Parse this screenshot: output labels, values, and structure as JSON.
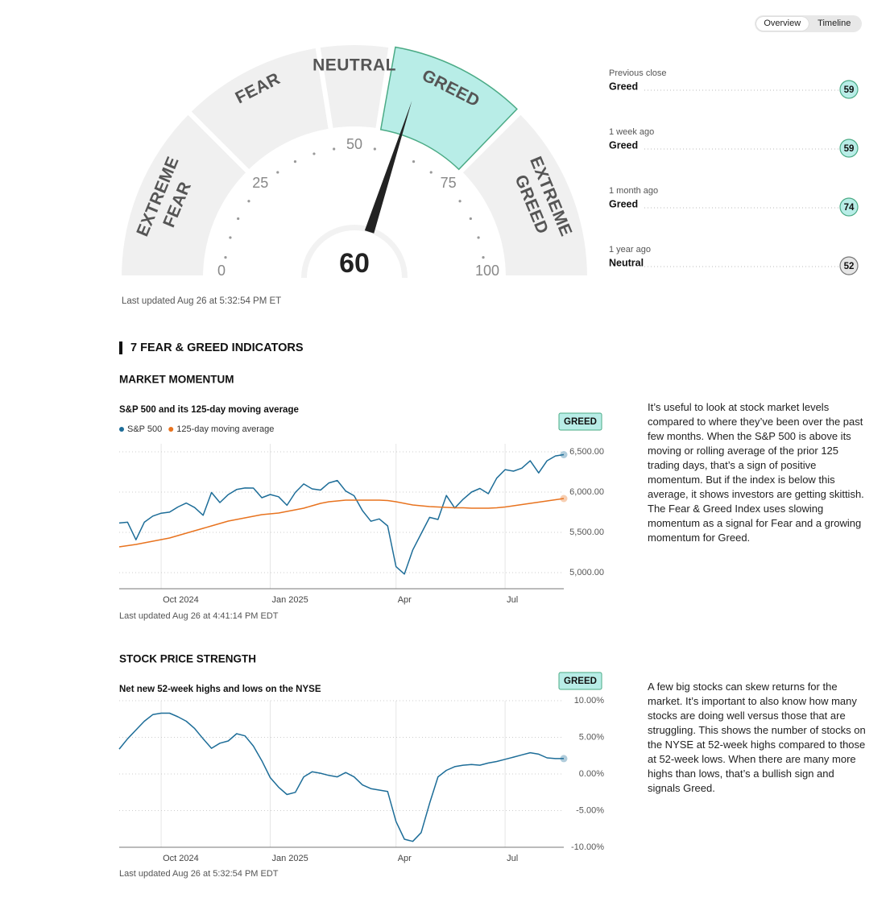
{
  "tabs": {
    "items": [
      "Overview",
      "Timeline"
    ],
    "selected": 0
  },
  "gauge": {
    "value": 60,
    "ticks": [
      0,
      25,
      50,
      75,
      100
    ],
    "segments": [
      {
        "label": [
          "EXTREME",
          "FEAR"
        ],
        "range": [
          0,
          25
        ]
      },
      {
        "label": [
          "FEAR"
        ],
        "range": [
          25,
          45
        ]
      },
      {
        "label": [
          "NEUTRAL"
        ],
        "range": [
          45,
          55
        ]
      },
      {
        "label": [
          "GREED"
        ],
        "range": [
          55,
          75
        ]
      },
      {
        "label": [
          "EXTREME",
          "GREED"
        ],
        "range": [
          75,
          100
        ]
      }
    ],
    "highlight_color": "#b8ede7",
    "highlight_stroke": "#4bab86",
    "updated": "Last updated Aug 26 at 5:32:54 PM ET"
  },
  "history": [
    {
      "label": "Previous close",
      "rating": "Greed",
      "value": 59,
      "color": "#b8ede7",
      "border": "#4bab86"
    },
    {
      "label": "1 week ago",
      "rating": "Greed",
      "value": 59,
      "color": "#b8ede7",
      "border": "#4bab86"
    },
    {
      "label": "1 month ago",
      "rating": "Greed",
      "value": 74,
      "color": "#b8ede7",
      "border": "#4bab86"
    },
    {
      "label": "1 year ago",
      "rating": "Neutral",
      "value": 52,
      "color": "#e6e6e6",
      "border": "#777777"
    }
  ],
  "section_title": "7 FEAR & GREED INDICATORS",
  "indicators": [
    {
      "heading": "MARKET MOMENTUM",
      "rating": "GREED",
      "rating_color": "#b8ede7",
      "description": "It’s useful to look at stock market levels compared to where they’ve been over the past few months. When the S&P 500 is above its moving or rolling average of the prior 125 trading days, that’s a sign of positive momentum. But if the index is below this average, it shows investors are getting skittish. The Fear & Greed Index uses slowing momentum as a signal for Fear and a growing momentum for Greed.",
      "updated": "Last updated Aug 26 at 4:41:14 PM EDT"
    },
    {
      "heading": "STOCK PRICE STRENGTH",
      "rating": "GREED",
      "rating_color": "#b8ede7",
      "description": "A few big stocks can skew returns for the market. It’s important to also know how many stocks are doing well versus those that are struggling. This shows the number of stocks on the NYSE at 52-week highs compared to those at 52-week lows. When there are many more highs than lows, that’s a bullish sign and signals Greed.",
      "updated": "Last updated Aug 26 at 5:32:54 PM EDT"
    }
  ],
  "chart_data": [
    {
      "type": "line",
      "title": "S&P 500 and its 125-day moving average",
      "categories": [
        null,
        null,
        null,
        null,
        null,
        "Oct 2024",
        null,
        null,
        null,
        null,
        null,
        null,
        null,
        null,
        null,
        null,
        null,
        null,
        "Jan 2025",
        null,
        null,
        null,
        null,
        null,
        null,
        null,
        null,
        null,
        null,
        null,
        null,
        null,
        null,
        "Apr",
        null,
        null,
        null,
        null,
        null,
        null,
        null,
        null,
        null,
        null,
        null,
        null,
        "Jul",
        null,
        null,
        null,
        null,
        null,
        null,
        null
      ],
      "series": [
        {
          "name": "S&P 500",
          "color": "#1d6d98",
          "values": [
            5616,
            5626,
            5408,
            5626,
            5702,
            5738,
            5751,
            5815,
            5864,
            5808,
            5712,
            5995,
            5870,
            5969,
            6032,
            6051,
            6050,
            5930,
            5970,
            5942,
            5836,
            5996,
            6101,
            6040,
            6025,
            6114,
            6144,
            6013,
            5955,
            5770,
            5638,
            5667,
            5580,
            5074,
            4982,
            5282,
            5484,
            5686,
            5660,
            5958,
            5802,
            5911,
            6000,
            6045,
            5980,
            6173,
            6279,
            6260,
            6297,
            6389,
            6238,
            6389,
            6449,
            6465
          ]
        },
        {
          "name": "125-day moving average",
          "color": "#e8731f",
          "values": [
            5320,
            5335,
            5350,
            5370,
            5390,
            5410,
            5430,
            5460,
            5490,
            5520,
            5550,
            5580,
            5610,
            5640,
            5660,
            5680,
            5700,
            5720,
            5730,
            5740,
            5760,
            5780,
            5800,
            5830,
            5860,
            5880,
            5890,
            5900,
            5900,
            5900,
            5900,
            5900,
            5895,
            5880,
            5860,
            5840,
            5830,
            5820,
            5815,
            5810,
            5805,
            5805,
            5800,
            5800,
            5800,
            5805,
            5815,
            5830,
            5845,
            5860,
            5875,
            5890,
            5905,
            5920
          ]
        }
      ],
      "ylim": [
        4800,
        6600
      ],
      "yticks": [
        {
          "value": 5000,
          "label": "5,000.00"
        },
        {
          "value": 5500,
          "label": "5,500.00"
        },
        {
          "value": 6000,
          "label": "6,000.00"
        },
        {
          "value": 6500,
          "label": "6,500.00"
        }
      ],
      "grid": true,
      "legend": "top-left"
    },
    {
      "type": "line",
      "title": "Net new 52-week highs and lows on the NYSE",
      "categories": [
        null,
        null,
        null,
        null,
        null,
        "Oct 2024",
        null,
        null,
        null,
        null,
        null,
        null,
        null,
        null,
        null,
        null,
        null,
        null,
        "Jan 2025",
        null,
        null,
        null,
        null,
        null,
        null,
        null,
        null,
        null,
        null,
        null,
        null,
        null,
        null,
        "Apr",
        null,
        null,
        null,
        null,
        null,
        null,
        null,
        null,
        null,
        null,
        null,
        null,
        "Jul",
        null,
        null,
        null,
        null,
        null,
        null,
        null
      ],
      "series": [
        {
          "color": "#1d6d98",
          "values": [
            3.4,
            4.8,
            6.0,
            7.2,
            8.1,
            8.3,
            8.3,
            7.8,
            7.2,
            6.2,
            4.8,
            3.5,
            4.2,
            4.5,
            5.5,
            5.2,
            3.8,
            1.8,
            -0.5,
            -1.8,
            -2.8,
            -2.5,
            -0.4,
            0.3,
            0.1,
            -0.2,
            -0.4,
            0.2,
            -0.4,
            -1.5,
            -2.0,
            -2.2,
            -2.4,
            -6.5,
            -8.9,
            -9.2,
            -8.0,
            -4.0,
            -0.4,
            0.5,
            1.0,
            1.2,
            1.3,
            1.2,
            1.5,
            1.7,
            2.0,
            2.3,
            2.6,
            2.9,
            2.7,
            2.2,
            2.1,
            2.1
          ]
        }
      ],
      "ylim": [
        -10,
        10
      ],
      "yticks": [
        {
          "value": -10,
          "label": "-10.00%"
        },
        {
          "value": -5,
          "label": "-5.00%"
        },
        {
          "value": 0,
          "label": "0.00%"
        },
        {
          "value": 5,
          "label": "5.00%"
        },
        {
          "value": 10,
          "label": "10.00%"
        }
      ],
      "grid": true
    }
  ]
}
